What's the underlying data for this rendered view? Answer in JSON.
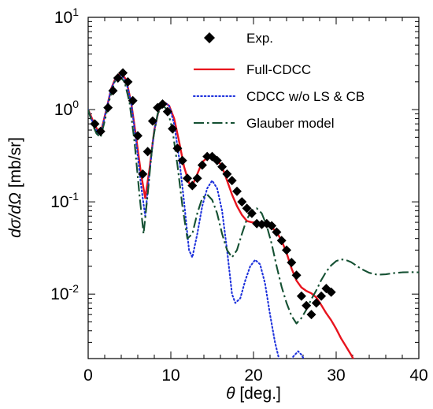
{
  "chart_data": {
    "type": "line",
    "title": "",
    "xlabel": "θ [deg.]",
    "xlabel_symbol": "θ",
    "xlabel_unit": "[deg.]",
    "ylabel": "dσ/dΩ [mb/sr]",
    "ylabel_symbol": "dσ/dΩ",
    "ylabel_unit": "[mb/sr]",
    "xlim": [
      0,
      40
    ],
    "ylim": [
      0.002,
      10
    ],
    "yscale": "log",
    "x_ticks": [
      "0",
      "10",
      "20",
      "30",
      "40"
    ],
    "y_ticks": [
      {
        "base": "10",
        "exp": "-2",
        "value": 0.01
      },
      {
        "base": "10",
        "exp": "-1",
        "value": 0.1
      },
      {
        "base": "10",
        "exp": "0",
        "value": 1
      },
      {
        "base": "10",
        "exp": "1",
        "value": 10
      }
    ],
    "legend_position": "top-right",
    "series": [
      {
        "name": "Exp.",
        "style": "markers",
        "color": "#000000",
        "marker": "diamond",
        "x": [
          0.8,
          1.5,
          2.4,
          3.0,
          3.6,
          4.2,
          4.8,
          5.4,
          6.0,
          6.6,
          7.2,
          7.8,
          8.4,
          9.0,
          9.6,
          10.2,
          10.8,
          11.4,
          12.0,
          12.6,
          13.2,
          13.8,
          14.4,
          15.0,
          15.6,
          16.2,
          16.8,
          17.4,
          18.0,
          18.6,
          19.2,
          19.8,
          20.4,
          21.0,
          21.6,
          22.2,
          22.8,
          23.4,
          24.0,
          24.6,
          25.2,
          25.8,
          26.4,
          27.0,
          27.6,
          28.2,
          28.8,
          29.4
        ],
        "y": [
          0.7,
          0.58,
          1.05,
          1.6,
          2.2,
          2.5,
          2.0,
          1.25,
          0.52,
          0.2,
          0.35,
          0.75,
          1.05,
          1.15,
          0.95,
          0.62,
          0.38,
          0.28,
          0.18,
          0.15,
          0.18,
          0.25,
          0.31,
          0.31,
          0.28,
          0.24,
          0.2,
          0.17,
          0.13,
          0.1,
          0.085,
          0.075,
          0.058,
          0.057,
          0.058,
          0.055,
          0.047,
          0.038,
          0.03,
          0.022,
          0.016,
          0.0095,
          0.0075,
          0.006,
          0.008,
          0.0095,
          0.0115,
          0.0105
        ]
      },
      {
        "name": "Full-CDCC",
        "style": "solid",
        "color": "#e8141e",
        "x": [
          0,
          0.6,
          1.2,
          1.6,
          2.2,
          2.8,
          3.4,
          4.0,
          4.6,
          5.2,
          5.8,
          6.4,
          6.9,
          7.4,
          8.0,
          8.6,
          9.2,
          9.8,
          10.4,
          11.0,
          11.6,
          12.2,
          12.6,
          13.2,
          13.8,
          14.4,
          15.0,
          15.6,
          16.2,
          16.8,
          17.4,
          18.0,
          18.6,
          19.2,
          19.8,
          20.4,
          21.0,
          21.6,
          22.2,
          22.8,
          23.4,
          24.0,
          24.6,
          25.2,
          25.8,
          26.4,
          27.0,
          27.6,
          28.2,
          28.8,
          29.4,
          30.0,
          30.6,
          31.2,
          31.8,
          32.2
        ],
        "y": [
          1.0,
          0.75,
          0.58,
          0.6,
          1.0,
          1.7,
          2.3,
          2.5,
          2.1,
          1.2,
          0.5,
          0.2,
          0.11,
          0.22,
          0.6,
          1.05,
          1.2,
          1.1,
          0.8,
          0.45,
          0.24,
          0.16,
          0.15,
          0.2,
          0.27,
          0.3,
          0.31,
          0.29,
          0.24,
          0.17,
          0.12,
          0.09,
          0.072,
          0.062,
          0.06,
          0.06,
          0.059,
          0.056,
          0.053,
          0.047,
          0.038,
          0.028,
          0.019,
          0.014,
          0.0118,
          0.0108,
          0.0102,
          0.0092,
          0.0076,
          0.0062,
          0.0052,
          0.0042,
          0.0033,
          0.0027,
          0.0022,
          0.0019
        ]
      },
      {
        "name": "CDCC w/o LS & CB",
        "style": "dotted",
        "color": "#1e32dc",
        "x": [
          0,
          0.6,
          1.2,
          1.6,
          2.2,
          2.8,
          3.4,
          4.0,
          4.6,
          5.2,
          5.8,
          6.4,
          6.9,
          7.4,
          8.0,
          8.6,
          9.2,
          9.8,
          10.4,
          11.0,
          11.6,
          12.2,
          12.6,
          13.2,
          13.8,
          14.4,
          15.0,
          15.6,
          16.2,
          16.8,
          17.4,
          17.8,
          18.4,
          19.0,
          19.6,
          20.2,
          20.8,
          21.4,
          22.0,
          22.6,
          23.2,
          23.8,
          24.4,
          24.8,
          25.4,
          25.8,
          26.2,
          26.6,
          27.0
        ],
        "y": [
          1.0,
          0.7,
          0.55,
          0.58,
          1.0,
          1.7,
          2.2,
          2.4,
          2.0,
          1.2,
          0.45,
          0.15,
          0.07,
          0.2,
          0.6,
          1.05,
          1.2,
          1.1,
          0.7,
          0.3,
          0.1,
          0.03,
          0.025,
          0.045,
          0.09,
          0.14,
          0.17,
          0.14,
          0.08,
          0.03,
          0.01,
          0.008,
          0.009,
          0.014,
          0.02,
          0.0235,
          0.021,
          0.013,
          0.006,
          0.003,
          0.0018,
          0.0015,
          0.0017,
          0.0021,
          0.0024,
          0.0022,
          0.0019,
          0.0017,
          0.0018
        ]
      },
      {
        "name": "Glauber model",
        "style": "dashdot",
        "color": "#145032",
        "x": [
          0,
          0.5,
          1.0,
          1.5,
          2.0,
          2.6,
          3.2,
          3.8,
          4.4,
          5.0,
          5.6,
          6.2,
          6.7,
          7.2,
          7.8,
          8.4,
          9.0,
          9.6,
          10.2,
          10.8,
          11.4,
          12.0,
          12.6,
          13.2,
          13.8,
          14.4,
          15.0,
          15.6,
          16.2,
          16.8,
          17.4,
          18.0,
          18.6,
          19.2,
          19.8,
          20.4,
          21.0,
          21.6,
          22.2,
          22.8,
          23.4,
          24.0,
          24.6,
          25.2,
          25.8,
          26.4,
          27.0,
          27.6,
          28.2,
          28.8,
          29.4,
          30.0,
          30.6,
          31.2,
          31.8,
          32.4,
          33.0,
          34.0,
          35.0,
          36.0,
          37.0,
          38.0,
          39.0,
          40.0
        ],
        "y": [
          1.0,
          0.7,
          0.55,
          0.5,
          0.75,
          1.3,
          2.0,
          2.3,
          2.0,
          1.2,
          0.45,
          0.12,
          0.045,
          0.12,
          0.45,
          0.9,
          1.1,
          1.0,
          0.6,
          0.25,
          0.09,
          0.04,
          0.045,
          0.075,
          0.11,
          0.12,
          0.105,
          0.075,
          0.045,
          0.03,
          0.025,
          0.03,
          0.045,
          0.065,
          0.08,
          0.085,
          0.075,
          0.055,
          0.035,
          0.02,
          0.012,
          0.008,
          0.0058,
          0.0048,
          0.0055,
          0.0068,
          0.0088,
          0.011,
          0.0142,
          0.0175,
          0.0205,
          0.0228,
          0.0238,
          0.0234,
          0.0222,
          0.0205,
          0.0188,
          0.017,
          0.0162,
          0.0164,
          0.0169,
          0.0172,
          0.0173,
          0.0172
        ]
      }
    ]
  }
}
